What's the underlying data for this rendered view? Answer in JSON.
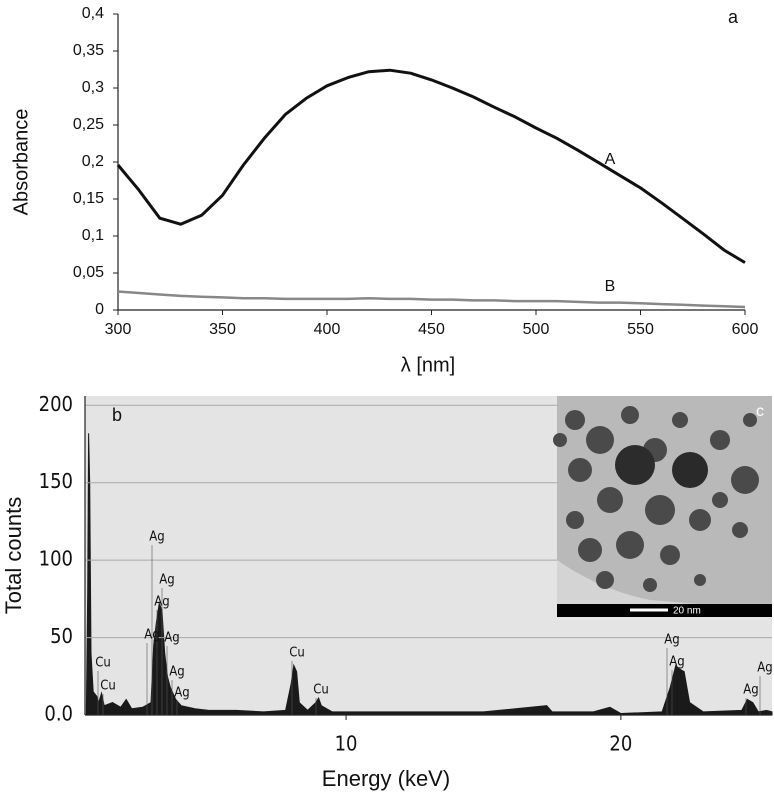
{
  "chart_data": [
    {
      "type": "line",
      "panel": "a",
      "ylabel": "Absorbance",
      "xlabel": "λ [nm]",
      "x": [
        300,
        310,
        320,
        330,
        340,
        350,
        360,
        370,
        380,
        390,
        400,
        410,
        420,
        430,
        440,
        450,
        460,
        470,
        480,
        490,
        500,
        510,
        520,
        530,
        540,
        550,
        560,
        570,
        580,
        590,
        600
      ],
      "series": [
        {
          "name": "A",
          "color": "#111111",
          "values": [
            0.196,
            0.162,
            0.124,
            0.116,
            0.128,
            0.155,
            0.196,
            0.232,
            0.264,
            0.286,
            0.303,
            0.314,
            0.322,
            0.324,
            0.32,
            0.311,
            0.3,
            0.288,
            0.274,
            0.261,
            0.246,
            0.232,
            0.216,
            0.199,
            0.182,
            0.165,
            0.145,
            0.124,
            0.103,
            0.081,
            0.064
          ]
        },
        {
          "name": "B",
          "color": "#888888",
          "values": [
            0.025,
            0.023,
            0.021,
            0.019,
            0.018,
            0.017,
            0.016,
            0.016,
            0.015,
            0.015,
            0.015,
            0.015,
            0.016,
            0.015,
            0.015,
            0.014,
            0.014,
            0.013,
            0.013,
            0.012,
            0.012,
            0.012,
            0.011,
            0.01,
            0.01,
            0.009,
            0.008,
            0.007,
            0.006,
            0.005,
            0.004
          ]
        }
      ],
      "xlim": [
        300,
        600
      ],
      "ylim": [
        0,
        0.4
      ],
      "xticks": [
        300,
        350,
        400,
        450,
        500,
        550,
        600
      ],
      "yticks": [
        0,
        {
          "value": 0.05,
          "label": "0,05"
        },
        {
          "value": 0.1,
          "label": "0,1"
        },
        {
          "value": 0.15,
          "label": "0,15"
        },
        {
          "value": 0.2,
          "label": "0,2"
        },
        {
          "value": 0.25,
          "label": "0,25"
        },
        {
          "value": 0.3,
          "label": "0,3"
        },
        {
          "value": 0.35,
          "label": "0,35"
        },
        {
          "value": 0.4,
          "label": "0,4"
        }
      ],
      "grid": false
    },
    {
      "type": "area",
      "panel": "b",
      "ylabel": "Total counts",
      "xlabel": "Energy (keV)",
      "color": "#1a1a1a",
      "x": [
        0.55,
        0.6,
        0.63,
        0.67,
        0.72,
        0.8,
        0.93,
        1.0,
        1.1,
        1.2,
        1.5,
        1.8,
        2.0,
        2.2,
        2.6,
        2.9,
        3.0,
        3.1,
        3.2,
        3.3,
        3.4,
        3.5,
        3.6,
        3.8,
        4.0,
        4.5,
        5.0,
        6.0,
        7.0,
        7.8,
        8.0,
        8.1,
        8.2,
        8.3,
        8.6,
        8.9,
        9.0,
        9.1,
        9.5,
        11,
        13,
        15,
        17.3,
        17.5,
        19,
        19.6,
        20,
        21.5,
        21.8,
        22.0,
        22.1,
        22.3,
        22.5,
        23,
        24.4,
        24.6,
        24.8,
        25,
        25.3,
        25.5
      ],
      "values": [
        5,
        80,
        182,
        150,
        40,
        15,
        12,
        8,
        14,
        6,
        8,
        5,
        10,
        4,
        5,
        8,
        45,
        60,
        72,
        68,
        40,
        25,
        18,
        10,
        6,
        4,
        3,
        3,
        2,
        3,
        20,
        32,
        28,
        8,
        3,
        8,
        11,
        6,
        2,
        2,
        2,
        2,
        6,
        2,
        2,
        5,
        1,
        2,
        18,
        32,
        30,
        28,
        8,
        2,
        3,
        10,
        8,
        2,
        3,
        2
      ],
      "xlim": [
        0.5,
        25.5
      ],
      "ylim": [
        0,
        206
      ],
      "xticks": [
        10,
        20
      ],
      "yticks": [
        {
          "value": 0,
          "label": "0.0"
        },
        50,
        100,
        150,
        200
      ],
      "grid": true,
      "peak_labels": [
        "Cu",
        "Cu",
        "Ag",
        "Ag",
        "Ag",
        "Ag",
        "Ag",
        "Ag",
        "Ag",
        "Cu",
        "Cu",
        "Ag",
        "Ag",
        "Ag",
        "Ag"
      ],
      "inset": {
        "label": "c",
        "scale_bar": "20 nm"
      }
    }
  ]
}
